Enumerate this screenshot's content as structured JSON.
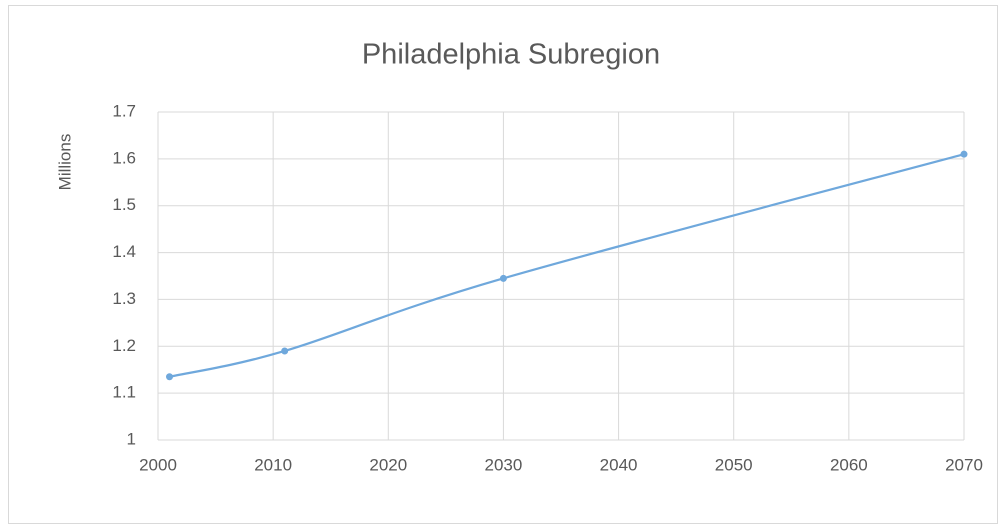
{
  "chart_data": {
    "type": "line",
    "title": "Philadelphia Subregion",
    "y_label": "Millions",
    "x": [
      2001,
      2011,
      2030,
      2070
    ],
    "series": [
      {
        "name": "Philadelphia Subregion",
        "color": "#6fa8dc",
        "values": [
          1.135,
          1.19,
          1.345,
          1.61
        ]
      }
    ],
    "xlim": [
      2000,
      2070
    ],
    "xticks": [
      2000,
      2010,
      2020,
      2030,
      2040,
      2050,
      2060,
      2070
    ],
    "ylim": [
      1,
      1.7
    ],
    "yticks": [
      1,
      1.1,
      1.2,
      1.3,
      1.4,
      1.5,
      1.6,
      1.7
    ],
    "grid": true,
    "smooth": true
  }
}
